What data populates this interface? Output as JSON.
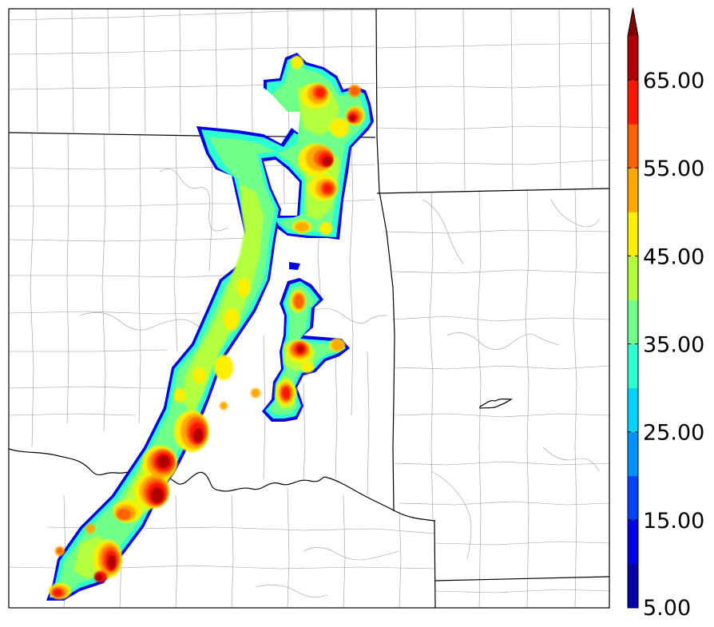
{
  "map": {
    "product": "radar-reflectivity-contours",
    "colors": {
      "background": "#ffffff",
      "county_lines": "#9a9a9a",
      "state_lines": "#000000",
      "frame": "#000000"
    }
  },
  "colorbar": {
    "min": 5,
    "max": 70,
    "step": 5,
    "extend": "max",
    "tick_labels": [
      "5.00",
      "15.00",
      "25.00",
      "35.00",
      "45.00",
      "55.00",
      "65.00"
    ],
    "tick_values": [
      5,
      15,
      25,
      35,
      45,
      55,
      65
    ],
    "levels": [
      {
        "from": 5,
        "to": 10,
        "color": "#0000a8"
      },
      {
        "from": 10,
        "to": 15,
        "color": "#0000e6"
      },
      {
        "from": 15,
        "to": 20,
        "color": "#0040ff"
      },
      {
        "from": 20,
        "to": 25,
        "color": "#0090ff"
      },
      {
        "from": 25,
        "to": 30,
        "color": "#00d4ff"
      },
      {
        "from": 30,
        "to": 35,
        "color": "#2cffd0"
      },
      {
        "from": 35,
        "to": 40,
        "color": "#70ff88"
      },
      {
        "from": 40,
        "to": 45,
        "color": "#b4ff3c"
      },
      {
        "from": 45,
        "to": 50,
        "color": "#ffee00"
      },
      {
        "from": 50,
        "to": 55,
        "color": "#ffa800"
      },
      {
        "from": 55,
        "to": 60,
        "color": "#ff6000"
      },
      {
        "from": 60,
        "to": 65,
        "color": "#ff1800"
      },
      {
        "from": 65,
        "to": 70,
        "color": "#b00000"
      }
    ],
    "over_color": "#800000"
  }
}
